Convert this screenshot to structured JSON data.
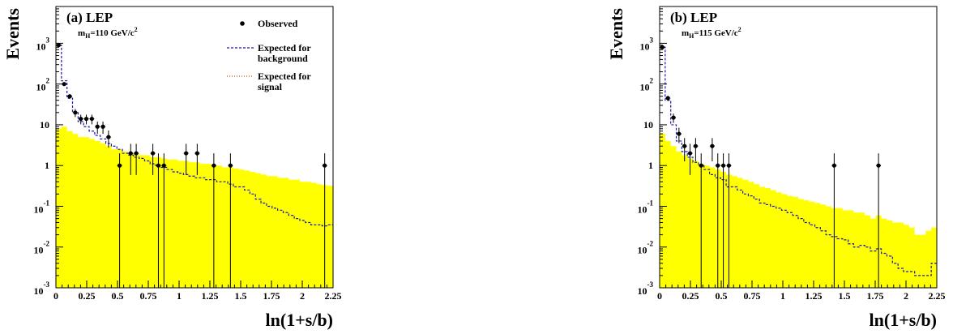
{
  "chart_data": [
    {
      "type": "area",
      "panel_label": "(a) LEP",
      "mass_label_prefix": "m",
      "mass_label_sub": "H",
      "mass_label_value": "=110 GeV/c",
      "mass_label_sup": "2",
      "xlabel": "ln(1+s/b)",
      "ylabel": "Events",
      "xlim": [
        0,
        2.25
      ],
      "ylim": [
        0.001,
        8000
      ],
      "yscale": "log",
      "x_ticks": [
        "0",
        "0.25",
        "0.5",
        "0.75",
        "1",
        "1.25",
        "1.5",
        "1.75",
        "2",
        "2.25"
      ],
      "y_ticks": [
        {
          "base": "10",
          "exp": "-3"
        },
        {
          "base": "10",
          "exp": "-2"
        },
        {
          "base": "10",
          "exp": "-1"
        },
        {
          "base": "1",
          "exp": ""
        },
        {
          "base": "10",
          "exp": ""
        },
        {
          "base": "10",
          "exp": "2"
        },
        {
          "base": "10",
          "exp": "3"
        }
      ],
      "legend": {
        "position": "top-right",
        "observed": "Observed",
        "background": [
          "Expected for",
          "background"
        ],
        "signal": [
          "Expected for",
          "signal"
        ]
      },
      "bin_width": 0.045,
      "signal": [
        8,
        9,
        7,
        6,
        5,
        5,
        4.5,
        4,
        3.5,
        3,
        2.5,
        2.5,
        2.2,
        2,
        2,
        1.8,
        1.8,
        1.6,
        1.6,
        1.5,
        1.4,
        1.4,
        1.3,
        1.3,
        1.2,
        1.2,
        1.1,
        1.1,
        1,
        1,
        0.9,
        0.9,
        0.85,
        0.8,
        0.75,
        0.7,
        0.65,
        0.6,
        0.55,
        0.55,
        0.5,
        0.5,
        0.45,
        0.45,
        0.4,
        0.4,
        0.38,
        0.35,
        0.33,
        0.32
      ],
      "background": [
        900,
        120,
        45,
        20,
        12,
        9,
        7,
        5.5,
        4.5,
        3.5,
        3,
        2.5,
        2,
        1.8,
        1.6,
        1.5,
        1.3,
        1.1,
        1,
        0.9,
        0.8,
        0.7,
        0.65,
        0.6,
        0.55,
        0.5,
        0.5,
        0.45,
        0.45,
        0.4,
        0.4,
        0.35,
        0.3,
        0.3,
        0.25,
        0.2,
        0.15,
        0.12,
        0.1,
        0.09,
        0.08,
        0.07,
        0.06,
        0.05,
        0.045,
        0.04,
        0.035,
        0.035,
        0.033,
        0.035
      ],
      "observed": [
        {
          "x": 0.022,
          "y": 900
        },
        {
          "x": 0.067,
          "y": 100
        },
        {
          "x": 0.112,
          "y": 50
        },
        {
          "x": 0.157,
          "y": 20
        },
        {
          "x": 0.202,
          "y": 14
        },
        {
          "x": 0.247,
          "y": 14
        },
        {
          "x": 0.292,
          "y": 14
        },
        {
          "x": 0.337,
          "y": 9
        },
        {
          "x": 0.382,
          "y": 9
        },
        {
          "x": 0.427,
          "y": 5
        },
        {
          "x": 0.517,
          "y": 1
        },
        {
          "x": 0.607,
          "y": 2
        },
        {
          "x": 0.652,
          "y": 2
        },
        {
          "x": 0.787,
          "y": 2
        },
        {
          "x": 0.832,
          "y": 1
        },
        {
          "x": 0.877,
          "y": 1
        },
        {
          "x": 1.057,
          "y": 2
        },
        {
          "x": 1.147,
          "y": 2
        },
        {
          "x": 1.282,
          "y": 1
        },
        {
          "x": 1.417,
          "y": 1
        },
        {
          "x": 2.182,
          "y": 1
        }
      ]
    },
    {
      "type": "area",
      "panel_label": "(b) LEP",
      "mass_label_prefix": "m",
      "mass_label_sub": "H",
      "mass_label_value": "=115 GeV/c",
      "mass_label_sup": "2",
      "xlabel": "ln(1+s/b)",
      "ylabel": "Events",
      "xlim": [
        0,
        2.25
      ],
      "ylim": [
        0.001,
        8000
      ],
      "yscale": "log",
      "x_ticks": [
        "0",
        "0.25",
        "0.5",
        "0.75",
        "1",
        "1.25",
        "1.5",
        "1.75",
        "2",
        "2.25"
      ],
      "y_ticks": [
        {
          "base": "10",
          "exp": "-3"
        },
        {
          "base": "10",
          "exp": "-2"
        },
        {
          "base": "10",
          "exp": "-1"
        },
        {
          "base": "1",
          "exp": ""
        },
        {
          "base": "10",
          "exp": ""
        },
        {
          "base": "10",
          "exp": "2"
        },
        {
          "base": "10",
          "exp": "3"
        }
      ],
      "bin_width": 0.045,
      "signal": [
        6,
        4,
        3,
        2.2,
        1.8,
        1.5,
        1.3,
        1.1,
        1,
        0.9,
        0.8,
        0.7,
        0.6,
        0.55,
        0.5,
        0.45,
        0.4,
        0.35,
        0.3,
        0.28,
        0.25,
        0.22,
        0.2,
        0.18,
        0.17,
        0.15,
        0.14,
        0.13,
        0.12,
        0.11,
        0.1,
        0.09,
        0.09,
        0.08,
        0.08,
        0.07,
        0.07,
        0.06,
        0.05,
        0.06,
        0.05,
        0.045,
        0.04,
        0.04,
        0.035,
        0.03,
        0.02,
        0.02,
        0.025,
        0.03
      ],
      "background": [
        800,
        40,
        10,
        4,
        2.2,
        1.6,
        1.2,
        1,
        0.8,
        0.6,
        0.5,
        0.45,
        0.3,
        0.3,
        0.25,
        0.2,
        0.18,
        0.15,
        0.12,
        0.11,
        0.1,
        0.09,
        0.08,
        0.07,
        0.06,
        0.05,
        0.04,
        0.035,
        0.03,
        0.025,
        0.02,
        0.018,
        0.016,
        0.015,
        0.012,
        0.01,
        0.011,
        0.01,
        0.008,
        0.009,
        0.007,
        0.006,
        0.004,
        0.003,
        0.0025,
        0.0025,
        0.002,
        0.002,
        0.002,
        0.004
      ],
      "observed": [
        {
          "x": 0.022,
          "y": 800
        },
        {
          "x": 0.067,
          "y": 45
        },
        {
          "x": 0.112,
          "y": 15
        },
        {
          "x": 0.157,
          "y": 6
        },
        {
          "x": 0.202,
          "y": 3
        },
        {
          "x": 0.247,
          "y": 2
        },
        {
          "x": 0.292,
          "y": 3
        },
        {
          "x": 0.337,
          "y": 1
        },
        {
          "x": 0.427,
          "y": 3
        },
        {
          "x": 0.472,
          "y": 1
        },
        {
          "x": 0.517,
          "y": 1
        },
        {
          "x": 0.562,
          "y": 1
        },
        {
          "x": 1.417,
          "y": 1
        },
        {
          "x": 1.777,
          "y": 1
        }
      ]
    }
  ]
}
